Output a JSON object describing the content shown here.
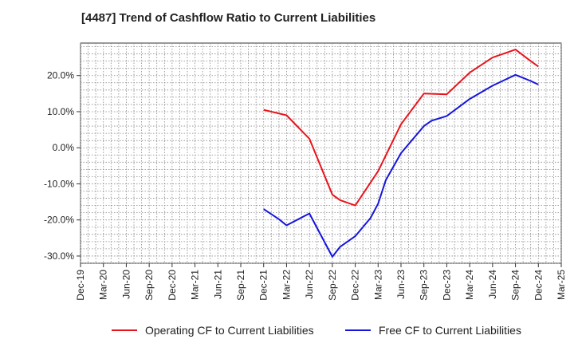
{
  "chart_data": {
    "type": "line",
    "title": "[4487]  Trend of Cashflow Ratio to Current Liabilities",
    "xlabel": "",
    "ylabel": "",
    "x_ticks": [
      "Dec-19",
      "Mar-20",
      "Jun-20",
      "Sep-20",
      "Dec-20",
      "Mar-21",
      "Jun-21",
      "Sep-21",
      "Dec-21",
      "Mar-22",
      "Jun-22",
      "Sep-22",
      "Dec-22",
      "Mar-23",
      "Jun-23",
      "Sep-23",
      "Dec-23",
      "Mar-24",
      "Jun-24",
      "Sep-24",
      "Dec-24",
      "Mar-25"
    ],
    "y_ticks": [
      20,
      10,
      0,
      -10,
      -20,
      -30
    ],
    "y_tick_labels": [
      "20.0%",
      "10.0%",
      "0.0%",
      "-10.0%",
      "-20.0%",
      "-30.0%"
    ],
    "ylim": [
      -32,
      29
    ],
    "grid": true,
    "legend_position": "bottom",
    "series": [
      {
        "name": "Operating CF to Current Liabilities",
        "color": "#e8141b",
        "x": [
          "Dec-21",
          "Mar-22",
          "Jun-22",
          "Sep-22",
          "Oct-22",
          "Dec-22",
          "Mar-23",
          "Jun-23",
          "Sep-23",
          "Dec-23",
          "Mar-24",
          "Jun-24",
          "Sep-24",
          "Nov-24",
          "Dec-24"
        ],
        "values": [
          10.5,
          9.0,
          2.5,
          -13.0,
          -14.5,
          -16.0,
          -6.5,
          6.5,
          15.0,
          14.8,
          20.8,
          25.0,
          27.2,
          24.0,
          22.5
        ]
      },
      {
        "name": "Free CF to Current Liabilities",
        "color": "#1515dd",
        "x": [
          "Dec-21",
          "Feb-22",
          "Mar-22",
          "Jun-22",
          "Sep-22",
          "Oct-22",
          "Dec-22",
          "Feb-23",
          "Mar-23",
          "Apr-23",
          "Jun-23",
          "Sep-23",
          "Oct-23",
          "Dec-23",
          "Mar-24",
          "Jun-24",
          "Sep-24",
          "Nov-24",
          "Dec-24"
        ],
        "values": [
          -17.0,
          -19.8,
          -21.5,
          -18.2,
          -30.2,
          -27.5,
          -24.5,
          -19.5,
          -15.5,
          -9.0,
          -1.5,
          6.0,
          7.5,
          8.8,
          13.5,
          17.2,
          20.2,
          18.5,
          17.5
        ]
      }
    ]
  }
}
